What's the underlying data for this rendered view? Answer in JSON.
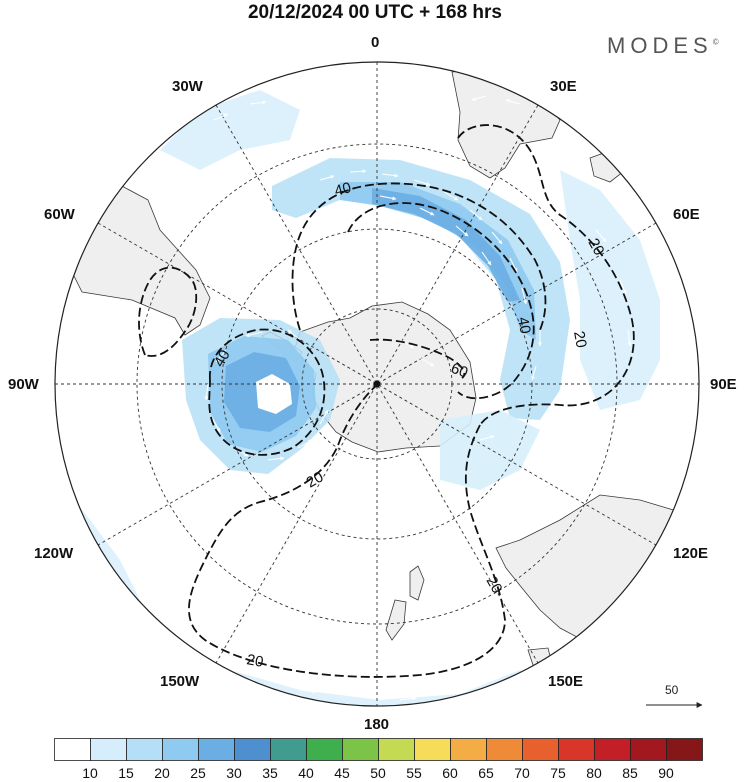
{
  "header": {
    "title": "20/12/2024  00 UTC  + 168 hrs",
    "brand": "MODES",
    "brand_mark": "©"
  },
  "longitude_labels": {
    "lon_0": "0",
    "lon_30e": "30E",
    "lon_60e": "60E",
    "lon_90e": "90E",
    "lon_120e": "120E",
    "lon_150e": "150E",
    "lon_180": "180",
    "lon_150w": "150W",
    "lon_120w": "120W",
    "lon_90w": "90W",
    "lon_60w": "60W",
    "lon_30w": "30W"
  },
  "contours": {
    "label_20": "20",
    "label_40": "40",
    "label_60": "60"
  },
  "reference_vector": {
    "value": "50"
  },
  "colorbar": {
    "labels": [
      "10",
      "15",
      "20",
      "25",
      "30",
      "35",
      "40",
      "45",
      "50",
      "55",
      "60",
      "65",
      "70",
      "75",
      "80",
      "85",
      "90"
    ],
    "colors": [
      "#ffffff",
      "#d6eefb",
      "#b4dff6",
      "#8fcaf0",
      "#6aaee3",
      "#4d8fcf",
      "#3f9c8f",
      "#3fae4d",
      "#7cc447",
      "#c4da52",
      "#f7dc5a",
      "#f4ad45",
      "#ef8a39",
      "#e8602d",
      "#d9362a",
      "#c22026",
      "#a3181f",
      "#861719"
    ]
  },
  "colors": {
    "land": "#efefef",
    "land_stroke": "#3a3a3a",
    "grid": "#333333",
    "contour": "#111111",
    "vector": "#ffffff"
  }
}
